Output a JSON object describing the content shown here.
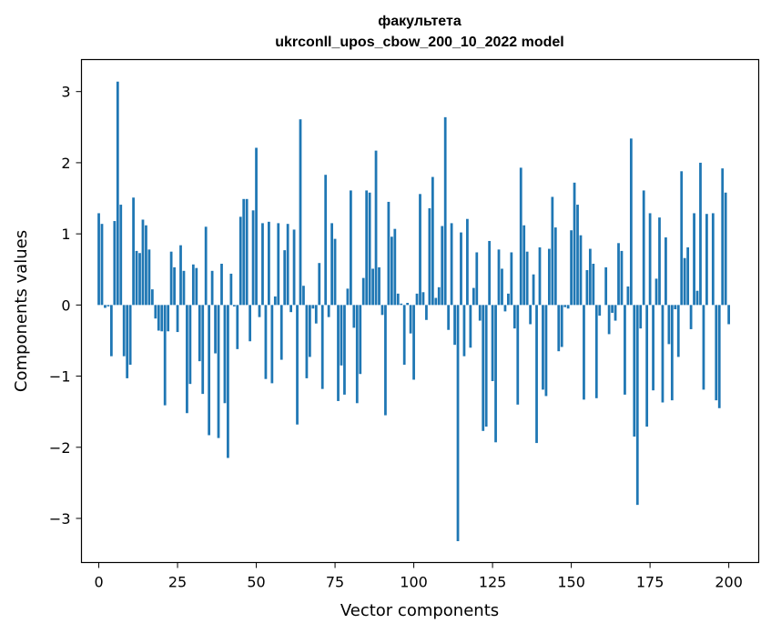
{
  "chart_data": {
    "type": "bar",
    "title": "факультета",
    "subtitle": "ukrconll_upos_cbow_200_10_2022 model",
    "xlabel": "Vector components",
    "ylabel": "Components values",
    "xlim": [
      -5.5,
      209.5
    ],
    "ylim": [
      -3.62,
      3.45
    ],
    "xticks": [
      0,
      25,
      50,
      75,
      100,
      125,
      150,
      175,
      200
    ],
    "yticks": [
      -3,
      -2,
      -1,
      0,
      1,
      2,
      3
    ],
    "ytick_labels": [
      "−3",
      "−2",
      "−1",
      "0",
      "1",
      "2",
      "3"
    ],
    "grid": false,
    "bar_color": "#1f77b4",
    "x_start": 0,
    "values": [
      1.29,
      1.14,
      -0.04,
      -0.02,
      -0.72,
      1.18,
      3.14,
      1.41,
      -0.72,
      -1.03,
      -0.84,
      1.51,
      0.76,
      0.73,
      1.2,
      1.12,
      0.78,
      0.22,
      -0.19,
      -0.36,
      -0.37,
      -1.41,
      -0.37,
      0.75,
      0.53,
      -0.38,
      0.84,
      0.48,
      -1.52,
      -1.11,
      0.57,
      0.52,
      -0.79,
      -1.25,
      1.1,
      -1.83,
      0.48,
      -0.68,
      -1.87,
      0.58,
      -1.38,
      -2.15,
      0.44,
      -0.02,
      -0.62,
      1.24,
      1.49,
      1.49,
      -0.51,
      1.33,
      2.21,
      -0.17,
      1.15,
      -1.04,
      1.17,
      -1.1,
      0.12,
      1.15,
      -0.77,
      0.77,
      1.14,
      -0.1,
      1.06,
      -1.68,
      2.61,
      0.27,
      -1.03,
      -0.73,
      -0.05,
      -0.26,
      0.59,
      -1.18,
      1.83,
      -0.17,
      1.15,
      0.93,
      -1.35,
      -0.85,
      -1.26,
      0.23,
      1.61,
      -0.32,
      -1.38,
      -0.97,
      0.38,
      1.61,
      1.58,
      0.51,
      2.17,
      0.53,
      -0.14,
      -1.55,
      1.45,
      0.96,
      1.07,
      0.16,
      0.02,
      -0.84,
      0.03,
      -0.4,
      -1.05,
      0.16,
      1.56,
      0.18,
      -0.21,
      1.36,
      1.8,
      0.1,
      0.25,
      1.11,
      2.64,
      -0.35,
      1.15,
      -0.56,
      -3.32,
      1.02,
      -0.72,
      1.21,
      -0.6,
      0.24,
      0.74,
      -0.22,
      -1.77,
      -1.71,
      0.9,
      -1.07,
      -1.93,
      0.78,
      0.51,
      -0.09,
      0.16,
      0.74,
      -0.33,
      -1.4,
      1.93,
      1.12,
      0.75,
      -0.27,
      0.43,
      -1.94,
      0.81,
      -1.19,
      -1.28,
      0.79,
      1.52,
      1.09,
      -0.65,
      -0.59,
      -0.03,
      -0.05,
      1.05,
      1.72,
      1.41,
      0.98,
      -1.33,
      0.49,
      0.79,
      0.58,
      -1.31,
      -0.15,
      0.0,
      0.53,
      -0.41,
      -0.11,
      -0.22,
      0.87,
      0.76,
      -1.26,
      0.26,
      2.34,
      -1.85,
      -2.81,
      -0.33,
      1.61,
      -1.71,
      1.29,
      -1.2,
      0.37,
      1.23,
      -1.37,
      0.95,
      -0.55,
      -1.34,
      -0.06,
      -0.73,
      1.88,
      0.66,
      0.81,
      -0.34,
      1.29,
      0.2,
      2.0,
      -1.19,
      1.28,
      0.0,
      1.29,
      -1.34,
      -1.45,
      1.92,
      1.58,
      -0.27
    ]
  }
}
